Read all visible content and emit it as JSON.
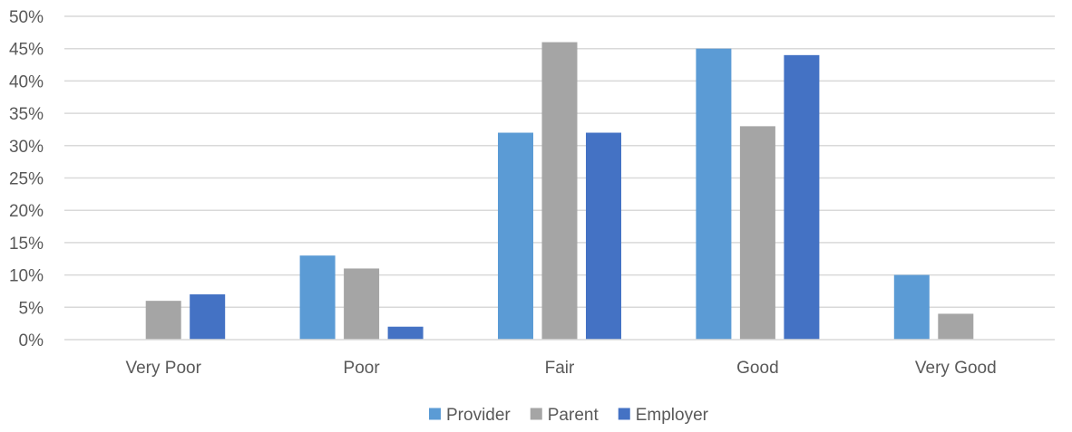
{
  "chart_data": {
    "type": "bar",
    "title": "",
    "xlabel": "",
    "ylabel": "",
    "categories": [
      "Very Poor",
      "Poor",
      "Fair",
      "Good",
      "Very Good"
    ],
    "series": [
      {
        "name": "Provider",
        "color": "#5b9bd5",
        "values": [
          0,
          13,
          32,
          45,
          10
        ]
      },
      {
        "name": "Parent",
        "color": "#a5a5a5",
        "values": [
          6,
          11,
          46,
          33,
          4
        ]
      },
      {
        "name": "Employer",
        "color": "#4472c4",
        "values": [
          7,
          2,
          32,
          44,
          0
        ]
      }
    ],
    "ylim": [
      0,
      50
    ],
    "y_ticks": [
      "0%",
      "5%",
      "10%",
      "15%",
      "20%",
      "25%",
      "30%",
      "35%",
      "40%",
      "45%",
      "50%"
    ],
    "y_unit": "%",
    "grid": true,
    "legend_position": "bottom"
  }
}
